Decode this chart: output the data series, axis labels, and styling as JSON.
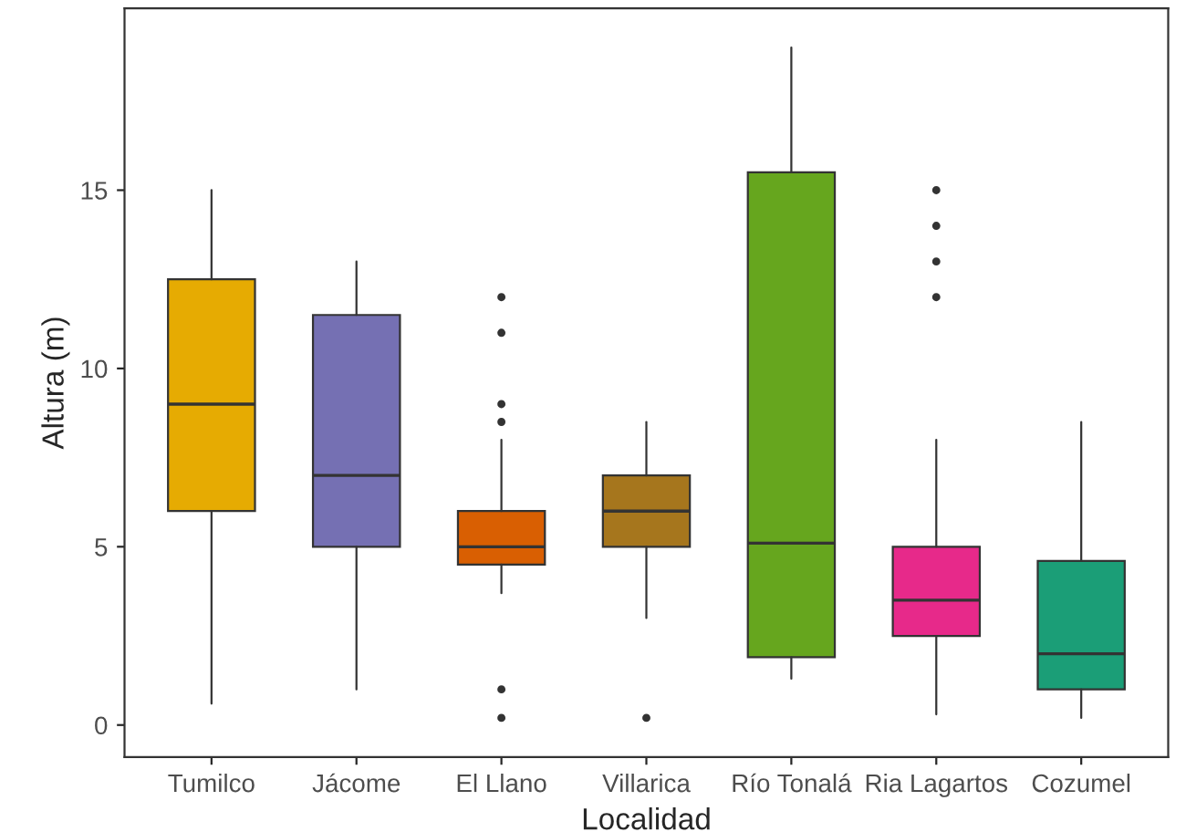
{
  "chart_data": {
    "type": "box",
    "xlabel": "Localidad",
    "ylabel": "Altura (m)",
    "categories": [
      "Tumilco",
      "Jácome",
      "El Llano",
      "Villarica",
      "Río Tonalá",
      "Ria Lagartos",
      "Cozumel"
    ],
    "colors": [
      "#e6ab02",
      "#7570b3",
      "#d95f02",
      "#a6761d",
      "#66a61e",
      "#e7298a",
      "#1b9e77"
    ],
    "boxes": [
      {
        "low": 0.6,
        "q1": 6,
        "median": 9,
        "q3": 12.5,
        "high": 15
      },
      {
        "low": 1,
        "q1": 5,
        "median": 7,
        "q3": 11.5,
        "high": 13
      },
      {
        "low": 3.7,
        "q1": 4.5,
        "median": 5,
        "q3": 6,
        "high": 8,
        "outliers": [
          12,
          11,
          9,
          8.5,
          1,
          0.2
        ]
      },
      {
        "low": 3,
        "q1": 5,
        "median": 6,
        "q3": 7,
        "high": 8.5,
        "outliers": [
          0.2
        ]
      },
      {
        "low": 1.3,
        "q1": 1.9,
        "median": 5.1,
        "q3": 15.5,
        "high": 19
      },
      {
        "low": 0.3,
        "q1": 2.5,
        "median": 3.5,
        "q3": 5,
        "high": 8,
        "outliers": [
          15,
          14,
          13,
          12
        ]
      },
      {
        "low": 0.2,
        "q1": 1,
        "median": 2,
        "q3": 4.6,
        "high": 8.5
      }
    ],
    "ylim": [
      -0.9,
      20.1
    ],
    "yticks": [
      0,
      5,
      10,
      15
    ],
    "grid": false,
    "legend": false
  }
}
